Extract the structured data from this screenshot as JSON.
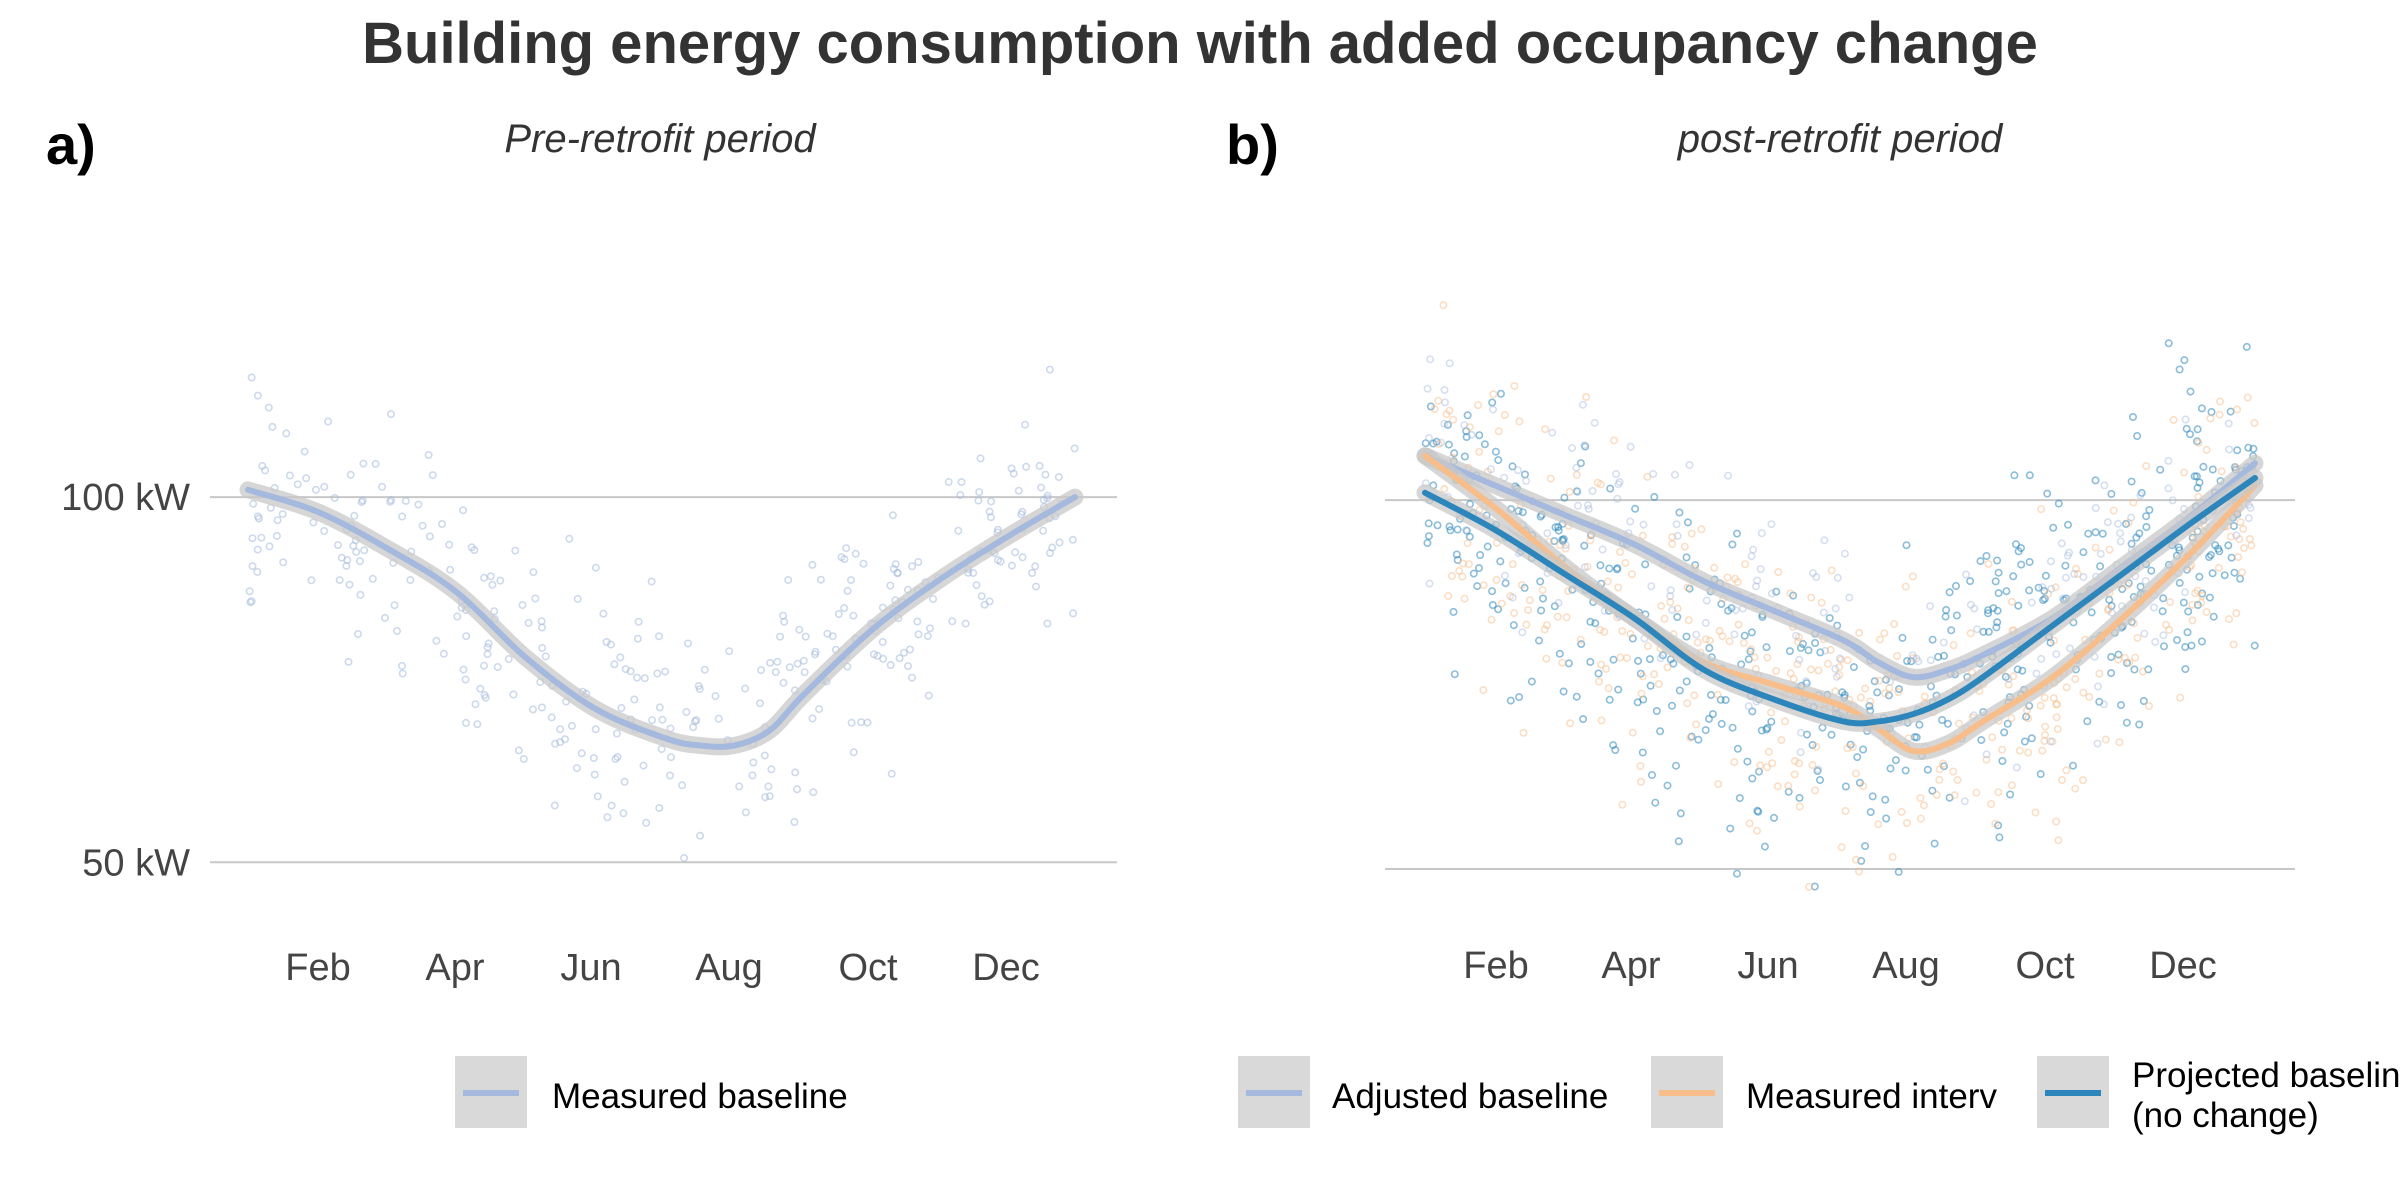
{
  "title": "Building energy consumption with added occupancy change",
  "colors": {
    "measured_baseline": "#a4b9dd",
    "adjusted_baseline": "#a4b9dd",
    "measured_interv": "#f7bd8a",
    "projected_baseline": "#2c86bc",
    "grid": "#c8c8c8",
    "ribbon": "#c8c8c8",
    "legend_key_bg": "#d9d9d9"
  },
  "chart_data": [
    {
      "panel": "a)",
      "subtitle": "Pre-retrofit period",
      "type": "line",
      "x_ticks": [
        "Feb",
        "Apr",
        "Jun",
        "Aug",
        "Oct",
        "Dec"
      ],
      "x_tick_months": [
        2,
        4,
        6,
        8,
        10,
        12
      ],
      "xlim": [
        1,
        12.9
      ],
      "ylim": [
        41,
        140
      ],
      "y_ticks": [
        50,
        100
      ],
      "y_tick_labels": [
        "50 kW",
        "100 kW"
      ],
      "grid": "horizontal major only",
      "legend": "bottom",
      "series": [
        {
          "name": "Measured baseline",
          "color_key": "measured_baseline",
          "x": [
            1,
            2,
            3,
            4,
            5,
            6,
            7,
            7.5,
            8,
            8.5,
            9,
            10,
            11,
            12,
            12.9
          ],
          "y": [
            101,
            98,
            93,
            87,
            78,
            71,
            67,
            66,
            66,
            68,
            73,
            82,
            89,
            95,
            100
          ]
        }
      ],
      "scatter": {
        "color_key": "measured_baseline",
        "months": [
          [
            1,
            12.9
          ]
        ],
        "approximate": true
      }
    },
    {
      "panel": "b)",
      "subtitle": "post-retrofit period",
      "type": "line",
      "x_ticks": [
        "Feb",
        "Apr",
        "Jun",
        "Aug",
        "Oct",
        "Dec"
      ],
      "x_tick_months": [
        2,
        4,
        6,
        8,
        10,
        12
      ],
      "xlim": [
        1,
        12.9
      ],
      "ylim": [
        42,
        140
      ],
      "y_ticks": [
        50,
        100
      ],
      "y_tick_labels": [
        "50 kW",
        "100 kW"
      ],
      "grid": "horizontal major only",
      "legend": "bottom",
      "series": [
        {
          "name": "Adjusted baseline",
          "color_key": "adjusted_baseline",
          "x": [
            1,
            2,
            3,
            4,
            5,
            6,
            7,
            7.5,
            8,
            8.5,
            9,
            10,
            11,
            12,
            12.9
          ],
          "y": [
            106,
            102,
            98,
            94,
            89,
            85,
            81,
            78,
            76,
            77,
            79,
            84,
            91,
            98,
            105
          ]
        },
        {
          "name": "Measured interv",
          "color_key": "measured_interv",
          "x": [
            1,
            2,
            3,
            4,
            5,
            6,
            7,
            7.5,
            8,
            8.5,
            9,
            10,
            11,
            12,
            12.9
          ],
          "y": [
            106,
            99,
            91,
            84,
            78,
            75,
            72,
            69,
            66,
            67,
            70,
            76,
            84,
            93,
            102
          ]
        },
        {
          "name": "Projected baseline\n(no change)",
          "color_key": "projected_baseline",
          "x": [
            1,
            2,
            3,
            4,
            5,
            6,
            7,
            7.5,
            8,
            8.5,
            9,
            10,
            11,
            12,
            12.9
          ],
          "y": [
            101,
            96,
            90,
            84,
            77,
            73,
            70,
            70,
            71,
            73,
            76,
            83,
            90,
            97,
            103
          ]
        }
      ],
      "scatter": {
        "color_keys": [
          "projected_baseline",
          "measured_interv",
          "adjusted_baseline"
        ],
        "approximate": true
      }
    }
  ]
}
